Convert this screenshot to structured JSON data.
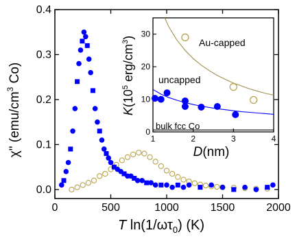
{
  "chart_data": [
    {
      "panel": "main",
      "type": "scatter",
      "title": "",
      "xlabel_main": "T",
      "xlabel_rest": " ln(1/ωτ",
      "xlabel_sub": "0",
      "xlabel_end": ") (K)",
      "ylabel": "χ\" (emu/cm",
      "ylabel_sup": "3",
      "ylabel_end": " Co)",
      "xlim": [
        0,
        2000
      ],
      "ylim": [
        -0.02,
        0.4
      ],
      "x_ticks": [
        0,
        500,
        1000,
        1500,
        2000
      ],
      "y_ticks": [
        0.0,
        0.1,
        0.2,
        0.3,
        0.4
      ],
      "x_tick_labels": [
        "0",
        "500",
        "1000",
        "1500",
        "2000"
      ],
      "y_tick_labels": [
        "0.0",
        "0.1",
        "0.2",
        "0.3",
        "0.4"
      ],
      "series": [
        {
          "marker": "filled",
          "color": "#0000ff",
          "values": [
            [
              60,
              0.01
            ],
            [
              80,
              0.02
            ],
            [
              100,
              0.04
            ],
            [
              120,
              0.06
            ],
            [
              140,
              0.09
            ],
            [
              160,
              0.13
            ],
            [
              180,
              0.18
            ],
            [
              200,
              0.24
            ],
            [
              215,
              0.28
            ],
            [
              230,
              0.31
            ],
            [
              245,
              0.33
            ],
            [
              260,
              0.35
            ],
            [
              275,
              0.34
            ],
            [
              290,
              0.32
            ],
            [
              305,
              0.29
            ],
            [
              320,
              0.26
            ],
            [
              340,
              0.22
            ],
            [
              360,
              0.18
            ],
            [
              380,
              0.15
            ],
            [
              400,
              0.13
            ],
            [
              420,
              0.11
            ],
            [
              440,
              0.09
            ],
            [
              460,
              0.08
            ],
            [
              480,
              0.07
            ],
            [
              500,
              0.06
            ],
            [
              530,
              0.05
            ],
            [
              560,
              0.045
            ],
            [
              590,
              0.04
            ],
            [
              620,
              0.035
            ],
            [
              650,
              0.03
            ],
            [
              680,
              0.03
            ],
            [
              710,
              0.025
            ],
            [
              740,
              0.02
            ],
            [
              780,
              0.02
            ],
            [
              820,
              0.015
            ],
            [
              860,
              0.015
            ],
            [
              900,
              0.01
            ],
            [
              950,
              0.01
            ],
            [
              1000,
              0.01
            ],
            [
              1050,
              0.005
            ],
            [
              1100,
              0.01
            ],
            [
              1150,
              0.005
            ],
            [
              1200,
              0.01
            ],
            [
              1300,
              0.005
            ],
            [
              1400,
              0.01
            ],
            [
              1500,
              0.005
            ],
            [
              1600,
              0.0
            ],
            [
              1700,
              0.005
            ],
            [
              1800,
              0.0
            ],
            [
              1900,
              0.005
            ],
            [
              1950,
              0.01
            ]
          ]
        },
        {
          "marker": "open",
          "color": "#b8a24a",
          "values": [
            [
              150,
              0.0
            ],
            [
              200,
              0.005
            ],
            [
              250,
              0.01
            ],
            [
              300,
              0.015
            ],
            [
              350,
              0.02
            ],
            [
              400,
              0.03
            ],
            [
              450,
              0.035
            ],
            [
              500,
              0.045
            ],
            [
              550,
              0.055
            ],
            [
              600,
              0.065
            ],
            [
              650,
              0.072
            ],
            [
              700,
              0.078
            ],
            [
              750,
              0.082
            ],
            [
              800,
              0.08
            ],
            [
              850,
              0.072
            ],
            [
              900,
              0.062
            ],
            [
              950,
              0.052
            ],
            [
              1000,
              0.042
            ],
            [
              1050,
              0.035
            ],
            [
              1100,
              0.028
            ],
            [
              1150,
              0.022
            ],
            [
              1200,
              0.018
            ],
            [
              1250,
              0.014
            ],
            [
              1300,
              0.011
            ],
            [
              1350,
              0.009
            ],
            [
              1400,
              0.007
            ],
            [
              1450,
              0.006
            ],
            [
              1500,
              0.005
            ],
            [
              1600,
              0.004
            ],
            [
              1700,
              0.003
            ],
            [
              1800,
              0.002
            ],
            [
              1900,
              0.002
            ]
          ]
        }
      ]
    },
    {
      "panel": "inset",
      "type": "scatter",
      "xlabel_main": "D",
      "xlabel_rest": "(nm)",
      "ylabel_main": "K",
      "ylabel_rest": "(10",
      "ylabel_sup": "5",
      "ylabel_mid": " erg/cm",
      "ylabel_sup2": "3",
      "ylabel_end": ")",
      "xlim": [
        1,
        4
      ],
      "ylim": [
        0,
        35
      ],
      "x_ticks": [
        1,
        2,
        3,
        4
      ],
      "y_ticks": [
        0,
        10,
        20,
        30
      ],
      "x_tick_labels": [
        "1",
        "2",
        "3",
        "4"
      ],
      "y_tick_labels": [
        "0",
        "10",
        "20",
        "30"
      ],
      "annotations": [
        "Au-capped",
        "uncapped",
        "bulk fcc Co"
      ],
      "series": [
        {
          "name": "Au-capped",
          "marker": "open",
          "color": "#b8a24a",
          "values": [
            [
              1.8,
              29.0
            ],
            [
              3.0,
              13.8
            ],
            [
              3.5,
              9.8
            ]
          ]
        },
        {
          "name": "uncapped",
          "marker": "filled",
          "color": "#0000ff",
          "values": [
            [
              1.05,
              10.3
            ],
            [
              1.2,
              10.0
            ],
            [
              1.35,
              12.0
            ],
            [
              1.8,
              9.5
            ],
            [
              1.8,
              7.8
            ],
            [
              2.2,
              7.6
            ],
            [
              2.6,
              7.8
            ],
            [
              3.05,
              5.3
            ]
          ]
        },
        {
          "name": "Au-capped fit",
          "type": "curve",
          "color": "#a09050",
          "values": [
            [
              1.0,
              45
            ],
            [
              1.2,
              37.5
            ],
            [
              1.4,
              32.1
            ],
            [
              1.6,
              28.1
            ],
            [
              1.8,
              25.0
            ],
            [
              2.0,
              22.5
            ],
            [
              2.2,
              20.5
            ],
            [
              2.4,
              18.8
            ],
            [
              2.6,
              17.3
            ],
            [
              2.8,
              16.1
            ],
            [
              3.0,
              15.0
            ],
            [
              3.2,
              14.1
            ],
            [
              3.4,
              13.2
            ],
            [
              3.6,
              12.5
            ],
            [
              3.8,
              11.8
            ],
            [
              4.0,
              11.3
            ]
          ]
        },
        {
          "name": "uncapped fit",
          "type": "curve",
          "color": "#0000ff",
          "values": [
            [
              1.0,
              13.0
            ],
            [
              1.2,
              11.6
            ],
            [
              1.4,
              10.5
            ],
            [
              1.6,
              9.7
            ],
            [
              1.8,
              9.0
            ],
            [
              2.0,
              8.4
            ],
            [
              2.2,
              7.9
            ],
            [
              2.4,
              7.5
            ],
            [
              2.6,
              7.1
            ],
            [
              2.8,
              6.8
            ],
            [
              3.0,
              6.5
            ],
            [
              3.2,
              6.2
            ],
            [
              3.4,
              6.0
            ],
            [
              3.6,
              5.8
            ],
            [
              3.8,
              5.6
            ],
            [
              4.0,
              5.4
            ]
          ]
        },
        {
          "name": "bulk fcc Co",
          "type": "line",
          "color": "#000000",
          "values": [
            [
              1.0,
              0.6
            ],
            [
              4.0,
              0.6
            ]
          ]
        }
      ]
    }
  ]
}
